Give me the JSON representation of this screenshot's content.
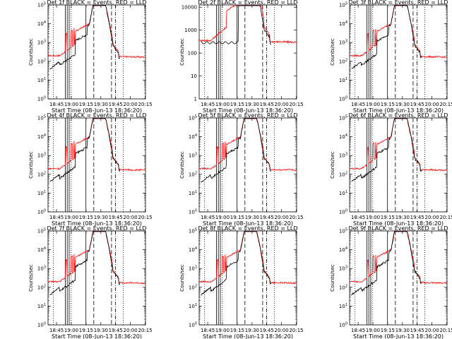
{
  "figure_title": "",
  "chart_data": [
    {
      "type": "line",
      "title": "Det 1f BLACK = Events, RED = LLD",
      "xlabel": "Start Time (08-Jun-13 18:36:20)",
      "ylabel": "Counts/sec",
      "ylog": true,
      "ylim_exp": [
        0,
        5
      ],
      "ytick_exp": [
        0,
        1,
        2,
        3,
        4,
        5
      ],
      "xticks": [
        "18:45",
        "19:00",
        "19:15",
        "19:30",
        "19:45",
        "20:00",
        "20:15"
      ],
      "series": []
    },
    {
      "type": "line",
      "title": "Det 2f BLACK = Events, RED = LLD",
      "xlabel": "Start Time (08-Jun-13 18:36:20)",
      "ylabel": "Counts/sec",
      "ylog": true,
      "ylim_exp": [
        0,
        4.1
      ],
      "ytick_labels": [
        "1",
        "10",
        "100",
        "1000",
        "10000"
      ],
      "xticks": [
        "18:45",
        "19:00",
        "19:15",
        "19:30",
        "19:45",
        "20:00",
        "20:15"
      ],
      "series": []
    },
    {
      "type": "line",
      "title": "Det 3f BLACK = Events, RED = LLD",
      "xlabel": "Start Time (08-Jun-13 18:36:20)",
      "ylabel": "Counts/sec",
      "ylog": true,
      "ylim_exp": [
        0,
        5
      ],
      "ytick_exp": [
        0,
        1,
        2,
        3,
        4,
        5
      ],
      "xticks": [
        "18:45",
        "19:00",
        "19:15",
        "19:30",
        "19:45",
        "20:00",
        "20:15"
      ],
      "series": []
    },
    {
      "type": "line",
      "title": "Det 4f BLACK = Events, RED = LLD",
      "xlabel": "Start Time (08-Jun-13 18:36:20)",
      "ylabel": "Counts/sec",
      "ylog": true,
      "ylim_exp": [
        0,
        5
      ],
      "ytick_exp": [
        0,
        1,
        2,
        3,
        4,
        5
      ],
      "xticks": [
        "18:45",
        "19:00",
        "19:15",
        "19:30",
        "19:45",
        "20:00",
        "20:15"
      ],
      "series": []
    },
    {
      "type": "line",
      "title": "Det 5f BLACK = Events, RED = LLD",
      "xlabel": "Start Time (08-Jun-13 18:36:20)",
      "ylabel": "Counts/sec",
      "ylog": true,
      "ylim_exp": [
        0,
        5
      ],
      "ytick_exp": [
        0,
        1,
        2,
        3,
        4,
        5
      ],
      "xticks": [
        "18:45",
        "19:00",
        "19:15",
        "19:30",
        "19:45",
        "20:00",
        "20:15"
      ],
      "series": []
    },
    {
      "type": "line",
      "title": "Det 6f BLACK = Events, RED = LLD",
      "xlabel": "Start Time (08-Jun-13 18:36:20)",
      "ylabel": "Counts/sec",
      "ylog": true,
      "ylim_exp": [
        0,
        5
      ],
      "ytick_exp": [
        0,
        1,
        2,
        3,
        4,
        5
      ],
      "xticks": [
        "18:45",
        "19:00",
        "19:15",
        "19:30",
        "19:45",
        "20:00",
        "20:15"
      ],
      "series": []
    },
    {
      "type": "line",
      "title": "Det 7f BLACK = Events, RED = LLD",
      "xlabel": "Start Time (08-Jun-13 18:36:20)",
      "ylabel": "Counts/sec",
      "ylog": true,
      "ylim_exp": [
        0,
        5
      ],
      "ytick_exp": [
        0,
        1,
        2,
        3,
        4,
        5
      ],
      "xticks": [
        "18:45",
        "19:00",
        "19:15",
        "19:30",
        "19:45",
        "20:00",
        "20:15"
      ],
      "series": []
    },
    {
      "type": "line",
      "title": "Det 8f BLACK = Events, RED = LLD",
      "xlabel": "Start Time (08-Jun-13 18:36:20)",
      "ylabel": "Counts/sec",
      "ylog": true,
      "ylim_exp": [
        0,
        5
      ],
      "ytick_exp": [
        0,
        1,
        2,
        3,
        4,
        5
      ],
      "xticks": [
        "18:45",
        "19:00",
        "19:15",
        "19:30",
        "19:45",
        "20:00",
        "20:15"
      ],
      "series": []
    },
    {
      "type": "line",
      "title": "Det 9f BLACK = Events, RED = LLD",
      "xlabel": "Start Time (08-Jun-13 18:36:20)",
      "ylabel": "Counts/sec",
      "ylog": true,
      "ylim_exp": [
        0,
        5
      ],
      "ytick_exp": [
        0,
        1,
        2,
        3,
        4,
        5
      ],
      "xticks": [
        "18:45",
        "19:00",
        "19:15",
        "19:30",
        "19:45",
        "20:00",
        "20:15"
      ],
      "series": []
    }
  ],
  "colors": {
    "events": "#000000",
    "lld": "#ff0000"
  }
}
